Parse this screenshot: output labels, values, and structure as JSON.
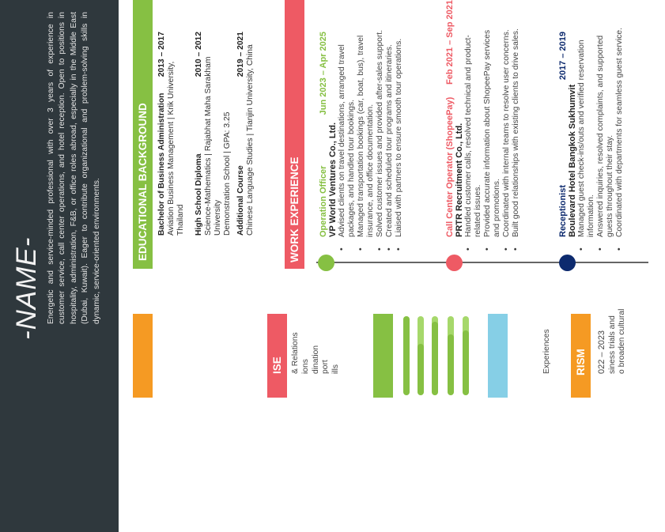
{
  "header": {
    "name": "-NAME-",
    "summary": "Energetic and service-minded professional with over 3 years of experience in customer service, call center operations, and hotel reception. Open to positions in hospitality, administration, F&B, or office roles abroad, especially in the Middle East (Dubai, Kuwait). Eager to contribute organizational and problem-solving skills in dynamic, service-oriented environments."
  },
  "education": {
    "title": "EDUCATIONAL BACKGROUND",
    "entries": [
      {
        "degree": "Bachelor of Business Administration",
        "years": "2013 – 2017",
        "details": [
          "Aviation Business Management | Krik University, Thailand"
        ]
      },
      {
        "degree": "High School Diploma",
        "years": "2010 – 2012",
        "details": [
          "Science-Mathematics | Rajabhat Maha Sarakham University",
          "Demonstration School | GPA: 3.25"
        ]
      },
      {
        "degree": "Additional Course",
        "years": "2019 – 2021",
        "details": [
          "Chinese Language Studies | Tianjin University, China"
        ]
      }
    ]
  },
  "work": {
    "title": "WORK EXPERIENCE",
    "jobs": [
      {
        "role": "Operation Officer",
        "dates": "Jun 2023 – Apr 2025",
        "company": "VP World Ventures Co., Ltd.",
        "color": "#86c043",
        "bullets": [
          "Advised clients on travel destinations, arranged travel packages, and handled tour bookings.",
          "Managed transportation bookings (car, boat, bus), travel insurance, and office documentation.",
          "Solved customer issues and provided after-sales support.",
          "Created and scheduled tour programs and itineraries.",
          "Liaised with partners to ensure smooth tour operations."
        ]
      },
      {
        "role": "Call Center Operator (ShopeePay)",
        "dates": "Feb 2021 – Sep 2021",
        "company": "PRTR Recruitment Co., Ltd.",
        "color": "#ee5a64",
        "bullets": [
          "Handled customer calls, resolved technical and product-related issues.",
          "Provided accurate information about ShopeePay services and promotions.",
          "Coordinated with internal teams to resolve user concerns.",
          "Built good relationships with existing clients to drive sales."
        ]
      },
      {
        "role": "Receptionist",
        "dates": "2017 – 2019",
        "company": "Boulevard Hotel Bangkok Sukhumvit",
        "color": "#0d2a6e",
        "bullets": [
          "Managed guest check-ins/outs and verified reservation information.",
          "Answered inquiries, resolved complaints, and supported guests throughout their stay.",
          "Coordinated with departments for seamless guest service."
        ]
      }
    ]
  },
  "left_column": {
    "expertise_title_fragment": "ISE",
    "expertise_fragments": [
      "& Relations",
      "ions",
      "dination",
      "port",
      "ills"
    ],
    "skill_levels_percent": [
      100,
      65,
      93,
      77,
      82
    ],
    "experiences_fragment": "Experiences",
    "tourism_title_fragment": "RISM",
    "tourism_years_fragment": "022 – 2023",
    "tourism_fragments": [
      "siness trials and",
      "o broaden cultural"
    ]
  },
  "colors": {
    "dark": "#2f383d",
    "green": "#86c043",
    "light_green": "#a6d86b",
    "pink": "#ee5a64",
    "orange": "#f59a23",
    "blue": "#86cfe6",
    "navy": "#0d2a6e"
  }
}
